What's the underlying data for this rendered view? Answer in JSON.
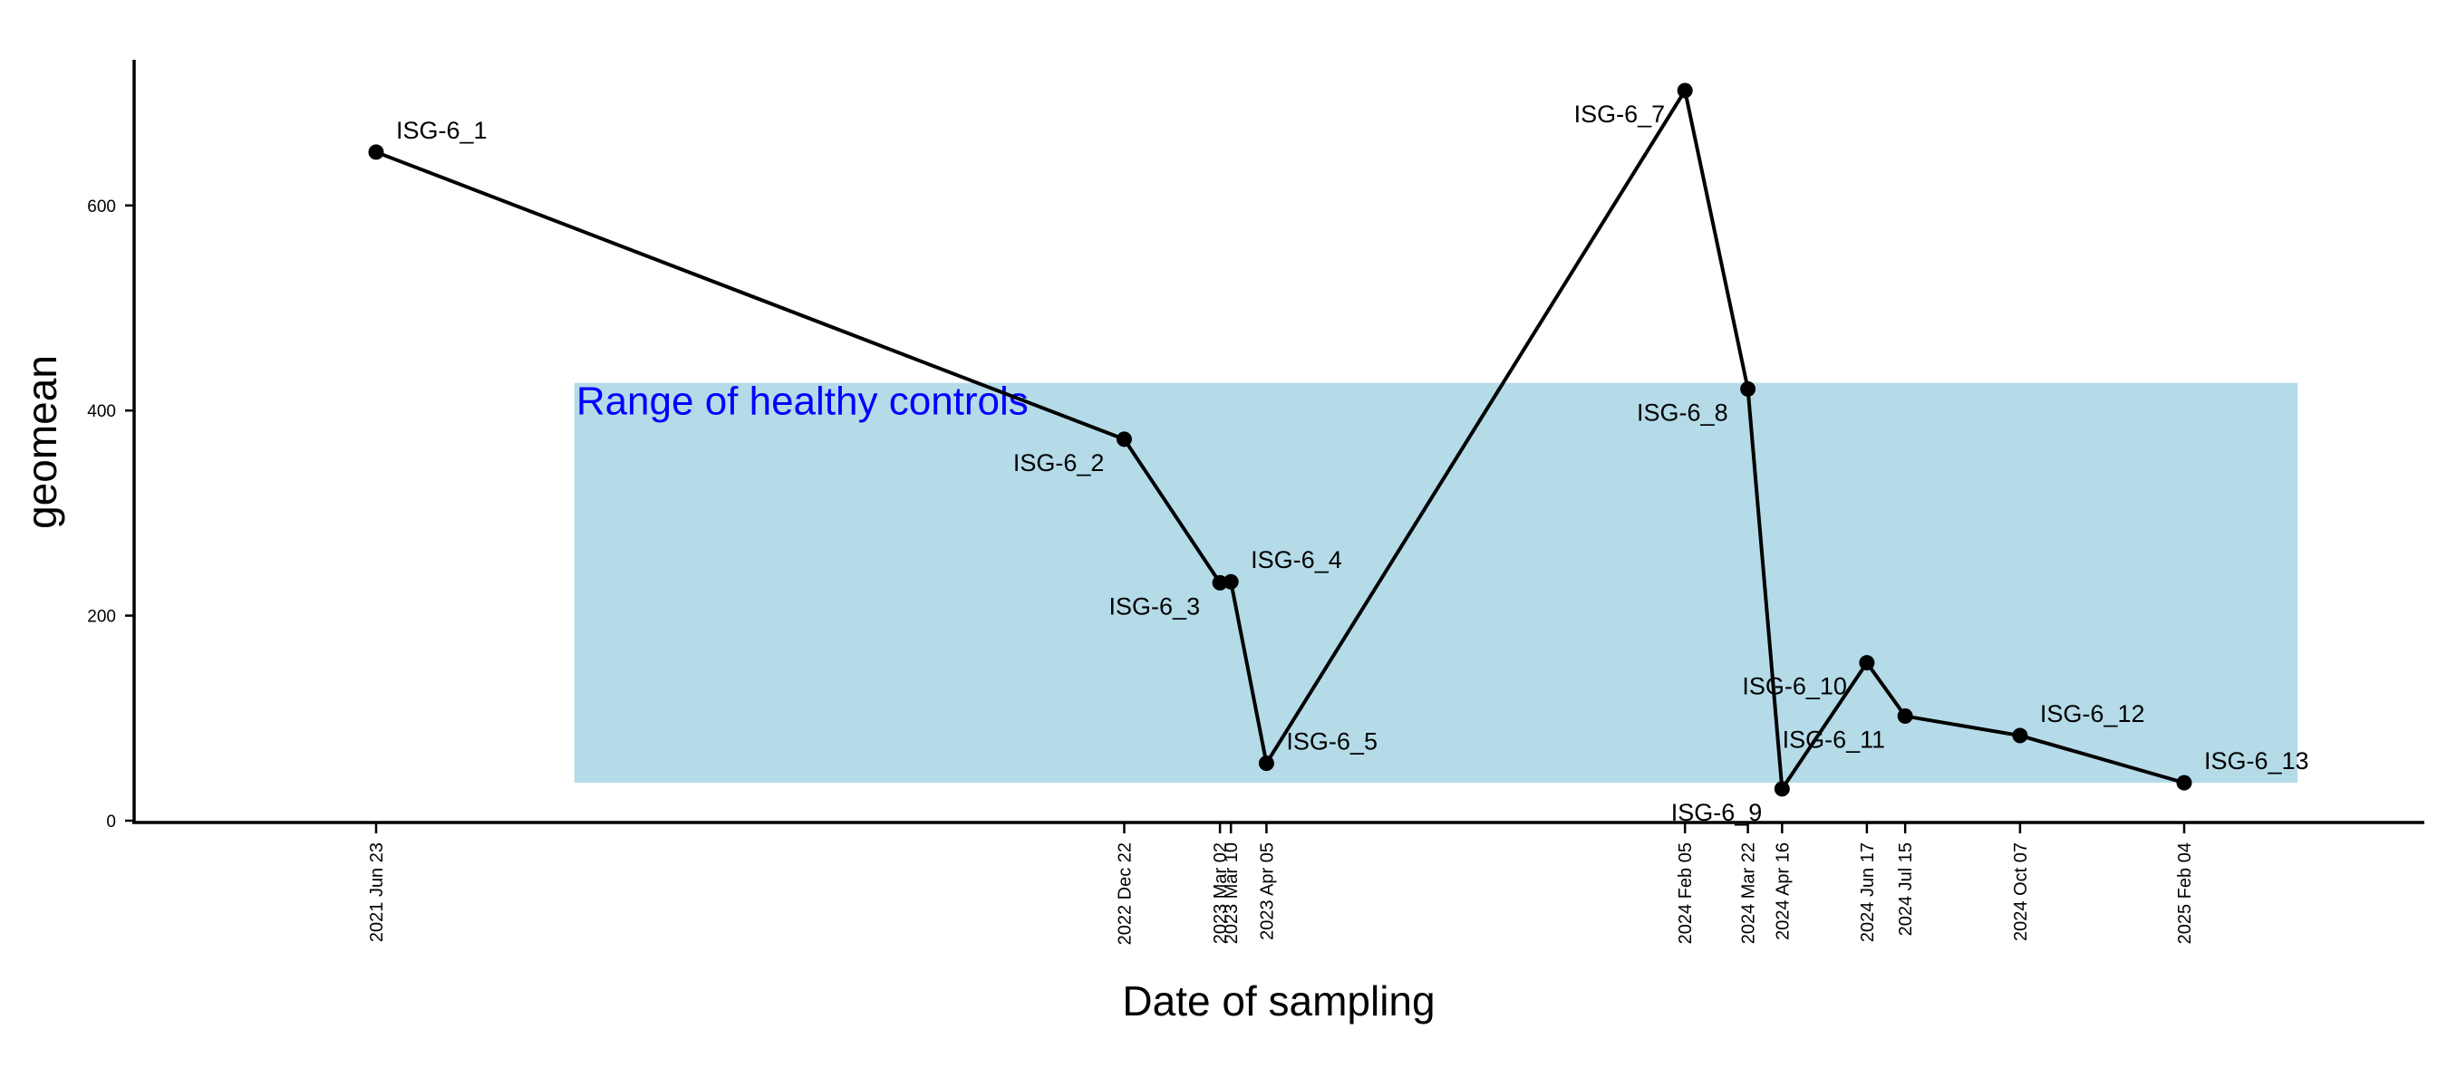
{
  "chart_data": {
    "type": "line",
    "xlabel": "Date of sampling",
    "ylabel": "geomean",
    "ylim": [
      0,
      750
    ],
    "yticks": [
      0,
      200,
      400,
      600
    ],
    "grid": false,
    "band": {
      "label": "Range of healthy controls",
      "y_range": [
        37,
        427
      ],
      "x_range": [
        "2021-11-15",
        "2025-04-28"
      ],
      "fill_color": "#b5dbe8",
      "label_color": "#0000ff"
    },
    "line_color": "#000000",
    "points": [
      {
        "date": "2021-06-23",
        "tick_label": "2021 Jun 23",
        "label": "ISG-6_1",
        "value": 652,
        "label_pos": "right"
      },
      {
        "date": "2022-12-22",
        "tick_label": "2022 Dec 22",
        "label": "ISG-6_2",
        "value": 372,
        "label_pos": "left"
      },
      {
        "date": "2023-03-02",
        "tick_label": "2023 Mar 02",
        "label": "ISG-6_3",
        "value": 232,
        "label_pos": "left"
      },
      {
        "date": "2023-03-10",
        "tick_label": "2023 Mar 10",
        "label": "ISG-6_4",
        "value": 233,
        "label_pos": "right"
      },
      {
        "date": "2023-04-05",
        "tick_label": "2023 Apr 05",
        "label": "ISG-6_5",
        "value": 56,
        "label_pos": "right"
      },
      {
        "date": "2024-02-05",
        "tick_label": "2024 Feb 05",
        "label": "ISG-6_7",
        "value": 712,
        "label_pos": "left"
      },
      {
        "date": "2024-03-22",
        "tick_label": "2024 Mar 22",
        "label": "ISG-6_8",
        "value": 421,
        "label_pos": "left"
      },
      {
        "date": "2024-04-16",
        "tick_label": "2024 Apr 16",
        "label": "ISG-6_9",
        "value": 31,
        "label_pos": "left"
      },
      {
        "date": "2024-06-17",
        "tick_label": "2024 Jun 17",
        "label": "ISG-6_10",
        "value": 154,
        "label_pos": "left"
      },
      {
        "date": "2024-07-15",
        "tick_label": "2024 Jul 15",
        "label": "ISG-6_11",
        "value": 102,
        "label_pos": "left"
      },
      {
        "date": "2024-10-07",
        "tick_label": "2024 Oct 07",
        "label": "ISG-6_12",
        "value": 83,
        "label_pos": "right"
      },
      {
        "date": "2025-02-04",
        "tick_label": "2025 Feb 04",
        "label": "ISG-6_13",
        "value": 37,
        "label_pos": "right"
      }
    ]
  }
}
